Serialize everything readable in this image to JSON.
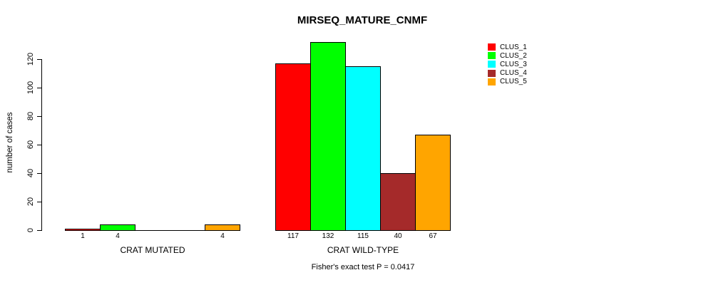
{
  "chart_data": {
    "type": "bar",
    "title": "MIRSEQ_MATURE_CNMF",
    "ylabel": "number of cases",
    "xlabel": "Fisher's exact test P = 0.0417",
    "groups": [
      "CRAT MUTATED",
      "CRAT WILD-TYPE"
    ],
    "series": [
      {
        "name": "CLUS_1",
        "color": "#FF0000",
        "values": [
          1,
          117
        ]
      },
      {
        "name": "CLUS_2",
        "color": "#00FF00",
        "values": [
          4,
          132
        ]
      },
      {
        "name": "CLUS_3",
        "color": "#00FFFF",
        "values": [
          0,
          115
        ]
      },
      {
        "name": "CLUS_4",
        "color": "#A52A2A",
        "values": [
          0,
          40
        ]
      },
      {
        "name": "CLUS_5",
        "color": "#FFA500",
        "values": [
          4,
          67
        ]
      }
    ],
    "bar_labels": [
      [
        "1",
        "4",
        "",
        "",
        "4"
      ],
      [
        "117",
        "132",
        "115",
        "40",
        "67"
      ]
    ],
    "yticks": [
      0,
      20,
      40,
      60,
      80,
      100,
      120
    ],
    "ylim": [
      0,
      132
    ],
    "grid": false,
    "legend_position": "top-right"
  },
  "colors": {
    "background": "#FFFFFF",
    "axis": "#000000",
    "text": "#000000"
  }
}
